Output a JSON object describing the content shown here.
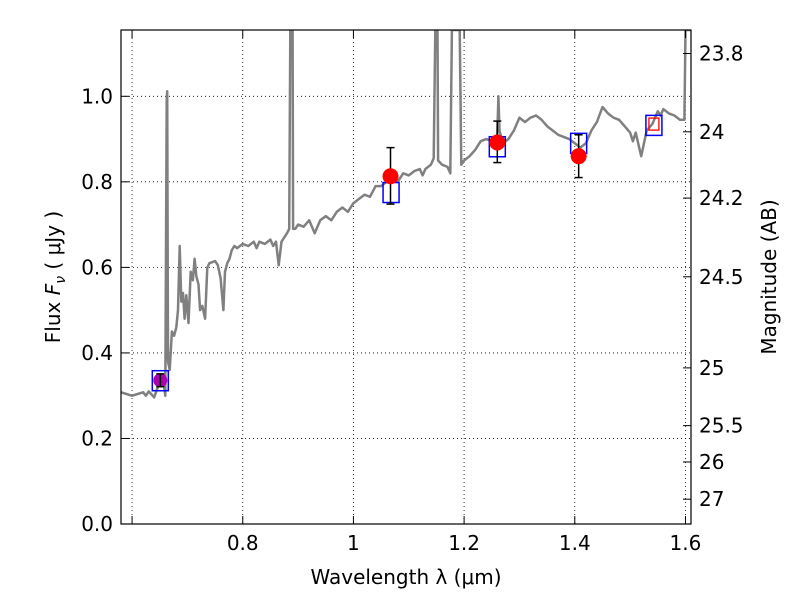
{
  "chart_data": {
    "type": "line",
    "title": "",
    "xlabel": "Wavelength  λ (μm)",
    "ylabel": "Flux  F_ν  ( μJy )",
    "ylabel_parts": {
      "prefix": "Flux  ",
      "symbol": "F",
      "subscript": "ν",
      "unit": "  ( μJy )"
    },
    "y2label": "Magnitude (AB)",
    "xlim": [
      0.58,
      1.61
    ],
    "ylim": [
      0.0,
      1.155
    ],
    "grid": true,
    "x_ticks": [
      0.6,
      0.8,
      1.0,
      1.2,
      1.4,
      1.6
    ],
    "x_tick_labels": [
      "",
      "0.8",
      "1",
      "1.2",
      "1.4",
      "1.6"
    ],
    "y_ticks": [
      0.0,
      0.2,
      0.4,
      0.6,
      0.8,
      1.0
    ],
    "y_tick_labels": [
      "0.0",
      "0.2",
      "0.4",
      "0.6",
      "0.8",
      "1.0"
    ],
    "y2_ticks": [
      {
        "label": "23.8",
        "flux": 1.1
      },
      {
        "label": "24",
        "flux": 0.917
      },
      {
        "label": "24.2",
        "flux": 0.762
      },
      {
        "label": "24.5",
        "flux": 0.578
      },
      {
        "label": "25",
        "flux": 0.365
      },
      {
        "label": "25.5",
        "flux": 0.23
      },
      {
        "label": "26",
        "flux": 0.145
      },
      {
        "label": "27",
        "flux": 0.058
      }
    ],
    "series": [
      {
        "name": "model_spectrum",
        "color": "#808080",
        "points": [
          [
            0.58,
            0.308
          ],
          [
            0.59,
            0.304
          ],
          [
            0.6,
            0.3
          ],
          [
            0.61,
            0.304
          ],
          [
            0.62,
            0.308
          ],
          [
            0.625,
            0.3
          ],
          [
            0.63,
            0.31
          ],
          [
            0.64,
            0.296
          ],
          [
            0.645,
            0.315
          ],
          [
            0.65,
            0.33
          ],
          [
            0.655,
            0.325
          ],
          [
            0.658,
            0.32
          ],
          [
            0.66,
            0.3
          ],
          [
            0.6625,
            0.99
          ],
          [
            0.6635,
            1.012
          ],
          [
            0.665,
            0.38
          ],
          [
            0.668,
            0.36
          ],
          [
            0.672,
            0.45
          ],
          [
            0.676,
            0.44
          ],
          [
            0.68,
            0.46
          ],
          [
            0.683,
            0.5
          ],
          [
            0.686,
            0.65
          ],
          [
            0.689,
            0.52
          ],
          [
            0.692,
            0.54
          ],
          [
            0.695,
            0.48
          ],
          [
            0.698,
            0.535
          ],
          [
            0.702,
            0.47
          ],
          [
            0.706,
            0.59
          ],
          [
            0.71,
            0.57
          ],
          [
            0.713,
            0.62
          ],
          [
            0.716,
            0.58
          ],
          [
            0.72,
            0.56
          ],
          [
            0.723,
            0.5
          ],
          [
            0.727,
            0.51
          ],
          [
            0.732,
            0.48
          ],
          [
            0.736,
            0.6
          ],
          [
            0.74,
            0.61
          ],
          [
            0.745,
            0.612
          ],
          [
            0.75,
            0.615
          ],
          [
            0.755,
            0.605
          ],
          [
            0.76,
            0.575
          ],
          [
            0.765,
            0.5
          ],
          [
            0.768,
            0.59
          ],
          [
            0.772,
            0.61
          ],
          [
            0.776,
            0.62
          ],
          [
            0.78,
            0.64
          ],
          [
            0.785,
            0.65
          ],
          [
            0.79,
            0.645
          ],
          [
            0.8,
            0.655
          ],
          [
            0.81,
            0.65
          ],
          [
            0.82,
            0.66
          ],
          [
            0.825,
            0.645
          ],
          [
            0.83,
            0.66
          ],
          [
            0.84,
            0.655
          ],
          [
            0.85,
            0.665
          ],
          [
            0.855,
            0.65
          ],
          [
            0.86,
            0.66
          ],
          [
            0.865,
            0.605
          ],
          [
            0.87,
            0.66
          ],
          [
            0.88,
            0.68
          ],
          [
            0.884,
            0.69
          ],
          [
            0.886,
            1.155
          ],
          [
            0.89,
            1.155
          ],
          [
            0.891,
            0.69
          ],
          [
            0.895,
            0.69
          ],
          [
            0.9,
            0.7
          ],
          [
            0.91,
            0.695
          ],
          [
            0.92,
            0.71
          ],
          [
            0.93,
            0.68
          ],
          [
            0.94,
            0.71
          ],
          [
            0.95,
            0.72
          ],
          [
            0.96,
            0.71
          ],
          [
            0.97,
            0.73
          ],
          [
            0.98,
            0.74
          ],
          [
            0.99,
            0.73
          ],
          [
            1.0,
            0.75
          ],
          [
            1.01,
            0.76
          ],
          [
            1.02,
            0.77
          ],
          [
            1.03,
            0.765
          ],
          [
            1.04,
            0.79
          ],
          [
            1.05,
            0.79
          ],
          [
            1.06,
            0.8
          ],
          [
            1.07,
            0.81
          ],
          [
            1.08,
            0.8
          ],
          [
            1.09,
            0.82
          ],
          [
            1.1,
            0.815
          ],
          [
            1.11,
            0.825
          ],
          [
            1.12,
            0.83
          ],
          [
            1.125,
            0.815
          ],
          [
            1.13,
            0.83
          ],
          [
            1.14,
            0.84
          ],
          [
            1.145,
            0.855
          ],
          [
            1.148,
            1.155
          ],
          [
            1.152,
            1.155
          ],
          [
            1.153,
            0.85
          ],
          [
            1.16,
            0.84
          ],
          [
            1.17,
            0.835
          ],
          [
            1.175,
            0.82
          ],
          [
            1.178,
            1.155
          ],
          [
            1.185,
            1.155
          ],
          [
            1.19,
            1.155
          ],
          [
            1.192,
            1.155
          ],
          [
            1.195,
            0.84
          ],
          [
            1.2,
            0.85
          ],
          [
            1.21,
            0.86
          ],
          [
            1.22,
            0.875
          ],
          [
            1.23,
            0.895
          ],
          [
            1.24,
            0.9
          ],
          [
            1.25,
            0.895
          ],
          [
            1.26,
            0.91
          ],
          [
            1.262,
            1.0
          ],
          [
            1.264,
            0.92
          ],
          [
            1.27,
            0.89
          ],
          [
            1.28,
            0.9
          ],
          [
            1.29,
            0.92
          ],
          [
            1.3,
            0.95
          ],
          [
            1.31,
            0.94
          ],
          [
            1.32,
            0.95
          ],
          [
            1.33,
            0.955
          ],
          [
            1.34,
            0.945
          ],
          [
            1.35,
            0.93
          ],
          [
            1.36,
            0.92
          ],
          [
            1.37,
            0.91
          ],
          [
            1.38,
            0.905
          ],
          [
            1.39,
            0.9
          ],
          [
            1.4,
            0.89
          ],
          [
            1.41,
            0.88
          ],
          [
            1.42,
            0.89
          ],
          [
            1.43,
            0.92
          ],
          [
            1.44,
            0.94
          ],
          [
            1.45,
            0.975
          ],
          [
            1.46,
            0.96
          ],
          [
            1.47,
            0.95
          ],
          [
            1.48,
            0.945
          ],
          [
            1.49,
            0.93
          ],
          [
            1.5,
            0.915
          ],
          [
            1.505,
            0.895
          ],
          [
            1.51,
            0.915
          ],
          [
            1.52,
            0.86
          ],
          [
            1.53,
            0.92
          ],
          [
            1.54,
            0.935
          ],
          [
            1.55,
            0.965
          ],
          [
            1.555,
            0.955
          ],
          [
            1.56,
            0.97
          ],
          [
            1.57,
            0.96
          ],
          [
            1.58,
            0.955
          ],
          [
            1.59,
            0.945
          ],
          [
            1.598,
            0.945
          ],
          [
            1.6,
            1.155
          ],
          [
            1.61,
            1.155
          ]
        ]
      }
    ],
    "observed_points": {
      "name": "photometry",
      "color": "#ff0000",
      "points": [
        {
          "x": 1.067,
          "y": 0.813,
          "err_low": 0.065,
          "err_high": 0.067
        },
        {
          "x": 1.26,
          "y": 0.892,
          "err_low": 0.047,
          "err_high": 0.05
        },
        {
          "x": 1.407,
          "y": 0.86,
          "err_low": 0.05,
          "err_high": 0.05
        }
      ]
    },
    "upper_point": {
      "name": "magenta_measurement",
      "color": "#aa00aa",
      "x": 0.651,
      "y": 0.336,
      "err_low": 0.015,
      "err_high": 0.015
    },
    "model_boxes": {
      "name": "model_band_fluxes",
      "color": "#0000ff",
      "points": [
        {
          "x": 0.651,
          "y": 0.335
        },
        {
          "x": 1.068,
          "y": 0.775
        },
        {
          "x": 1.26,
          "y": 0.882
        },
        {
          "x": 1.407,
          "y": 0.89
        },
        {
          "x": 1.543,
          "y": 0.932
        }
      ]
    },
    "small_box": {
      "name": "red_box",
      "color": "#ff0000",
      "x": 1.543,
      "y": 0.935
    }
  }
}
